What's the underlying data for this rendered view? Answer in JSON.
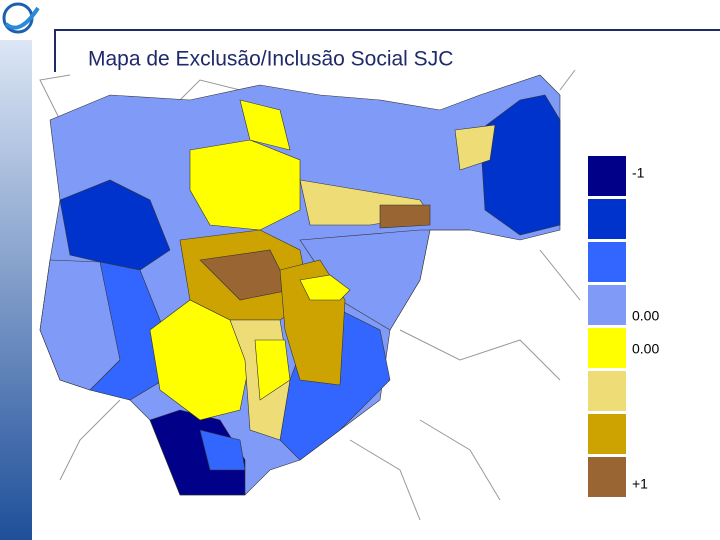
{
  "title": "Mapa de Exclusão/Inclusão Social SJC",
  "legend": {
    "items": [
      {
        "color": "#000088",
        "label": "-1"
      },
      {
        "color": "#0033cc"
      },
      {
        "color": "#3366ff"
      },
      {
        "color": "#7f9af7",
        "label": "0.00"
      },
      {
        "color": "#ffff00",
        "label": "0.00"
      },
      {
        "color": "#eedd77"
      },
      {
        "color": "#cca300"
      },
      {
        "color": "#996633",
        "label": "+1"
      }
    ]
  }
}
